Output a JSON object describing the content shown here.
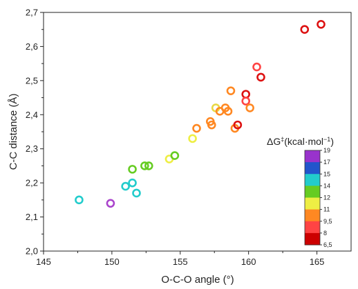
{
  "chart_data": {
    "type": "scatter",
    "xlabel": "O-C-O angle (°)",
    "ylabel": "C-C distance (Å)",
    "xlim": [
      145,
      167.5
    ],
    "ylim": [
      2.0,
      2.7
    ],
    "x_ticks": [
      "145",
      "150",
      "155",
      "160",
      "165"
    ],
    "y_ticks": [
      "2,0",
      "2,1",
      "2,2",
      "2,3",
      "2,4",
      "2,5",
      "2,6",
      "2,7"
    ],
    "grid": false,
    "marker": "open-circle",
    "points": [
      {
        "x": 147.6,
        "y": 2.15,
        "color": "#22CCCC"
      },
      {
        "x": 149.9,
        "y": 2.14,
        "color": "#AA44CC"
      },
      {
        "x": 151.0,
        "y": 2.19,
        "color": "#22CCCC"
      },
      {
        "x": 151.5,
        "y": 2.2,
        "color": "#22CCCC"
      },
      {
        "x": 151.8,
        "y": 2.17,
        "color": "#22CCCC"
      },
      {
        "x": 151.5,
        "y": 2.24,
        "color": "#66CC22"
      },
      {
        "x": 152.4,
        "y": 2.25,
        "color": "#66CC22"
      },
      {
        "x": 152.7,
        "y": 2.25,
        "color": "#66CC22"
      },
      {
        "x": 154.2,
        "y": 2.27,
        "color": "#EEEE44"
      },
      {
        "x": 154.6,
        "y": 2.28,
        "color": "#66CC22"
      },
      {
        "x": 155.9,
        "y": 2.33,
        "color": "#EEEE44"
      },
      {
        "x": 156.2,
        "y": 2.36,
        "color": "#FF8822"
      },
      {
        "x": 157.2,
        "y": 2.38,
        "color": "#FF8822"
      },
      {
        "x": 157.3,
        "y": 2.37,
        "color": "#FF8822"
      },
      {
        "x": 157.6,
        "y": 2.42,
        "color": "#E8D844"
      },
      {
        "x": 157.9,
        "y": 2.41,
        "color": "#FF8822"
      },
      {
        "x": 158.3,
        "y": 2.42,
        "color": "#FF8822"
      },
      {
        "x": 158.5,
        "y": 2.41,
        "color": "#FF8822"
      },
      {
        "x": 158.7,
        "y": 2.47,
        "color": "#FF8822"
      },
      {
        "x": 159.0,
        "y": 2.36,
        "color": "#FF8822"
      },
      {
        "x": 159.2,
        "y": 2.37,
        "color": "#DD1111"
      },
      {
        "x": 159.8,
        "y": 2.46,
        "color": "#DD1111"
      },
      {
        "x": 159.8,
        "y": 2.44,
        "color": "#FF4444"
      },
      {
        "x": 160.1,
        "y": 2.42,
        "color": "#FF8822"
      },
      {
        "x": 160.6,
        "y": 2.54,
        "color": "#FF4444"
      },
      {
        "x": 160.9,
        "y": 2.51,
        "color": "#DD1111"
      },
      {
        "x": 164.1,
        "y": 2.65,
        "color": "#DD1111"
      },
      {
        "x": 165.3,
        "y": 2.665,
        "color": "#DD1111"
      }
    ],
    "colorbar": {
      "title": "ΔG‡(kcal·mol−1)",
      "ticks": [
        "19",
        "17",
        "15",
        "14",
        "12",
        "11",
        "9,5",
        "8",
        "6,5"
      ],
      "colors": [
        "#9933CC",
        "#2255CC",
        "#22CCCC",
        "#66CC22",
        "#EEEE44",
        "#FF8822",
        "#FF4444",
        "#CC0000"
      ]
    }
  }
}
